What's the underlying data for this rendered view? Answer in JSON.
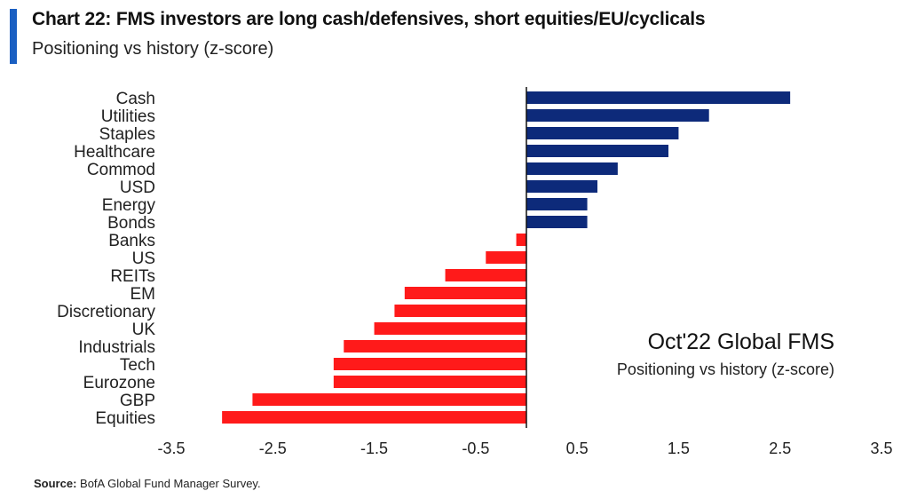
{
  "header": {
    "title": "Chart 22: FMS investors are long cash/defensives, short equities/EU/cyclicals",
    "subtitle": "Positioning vs history (z-score)"
  },
  "annotation": {
    "title": "Oct'22 Global FMS",
    "subtitle": "Positioning vs history (z-score)"
  },
  "source": {
    "label": "Source:",
    "text": "BofA Global Fund Manager Survey."
  },
  "colors": {
    "positive": "#0d2a7a",
    "negative": "#ff1a1a",
    "accent": "#1a5fc2"
  },
  "chart_data": {
    "type": "bar",
    "orientation": "horizontal",
    "categories": [
      "Cash",
      "Utilities",
      "Staples",
      "Healthcare",
      "Commod",
      "USD",
      "Energy",
      "Bonds",
      "Banks",
      "US",
      "REITs",
      "EM",
      "Discretionary",
      "UK",
      "Industrials",
      "Tech",
      "Eurozone",
      "GBP",
      "Equities"
    ],
    "values": [
      2.6,
      1.8,
      1.5,
      1.4,
      0.9,
      0.7,
      0.6,
      0.6,
      -0.1,
      -0.4,
      -0.8,
      -1.2,
      -1.3,
      -1.5,
      -1.8,
      -1.9,
      -1.9,
      -2.7,
      -3.0
    ],
    "xlim": [
      -3.5,
      3.5
    ],
    "xticks": [
      "-3.5",
      "-2.5",
      "-1.5",
      "-0.5",
      "0.5",
      "1.5",
      "2.5",
      "3.5"
    ],
    "xtick_values": [
      -3.5,
      -2.5,
      -1.5,
      -0.5,
      0.5,
      1.5,
      2.5,
      3.5
    ],
    "grid": false,
    "legend": "none"
  }
}
